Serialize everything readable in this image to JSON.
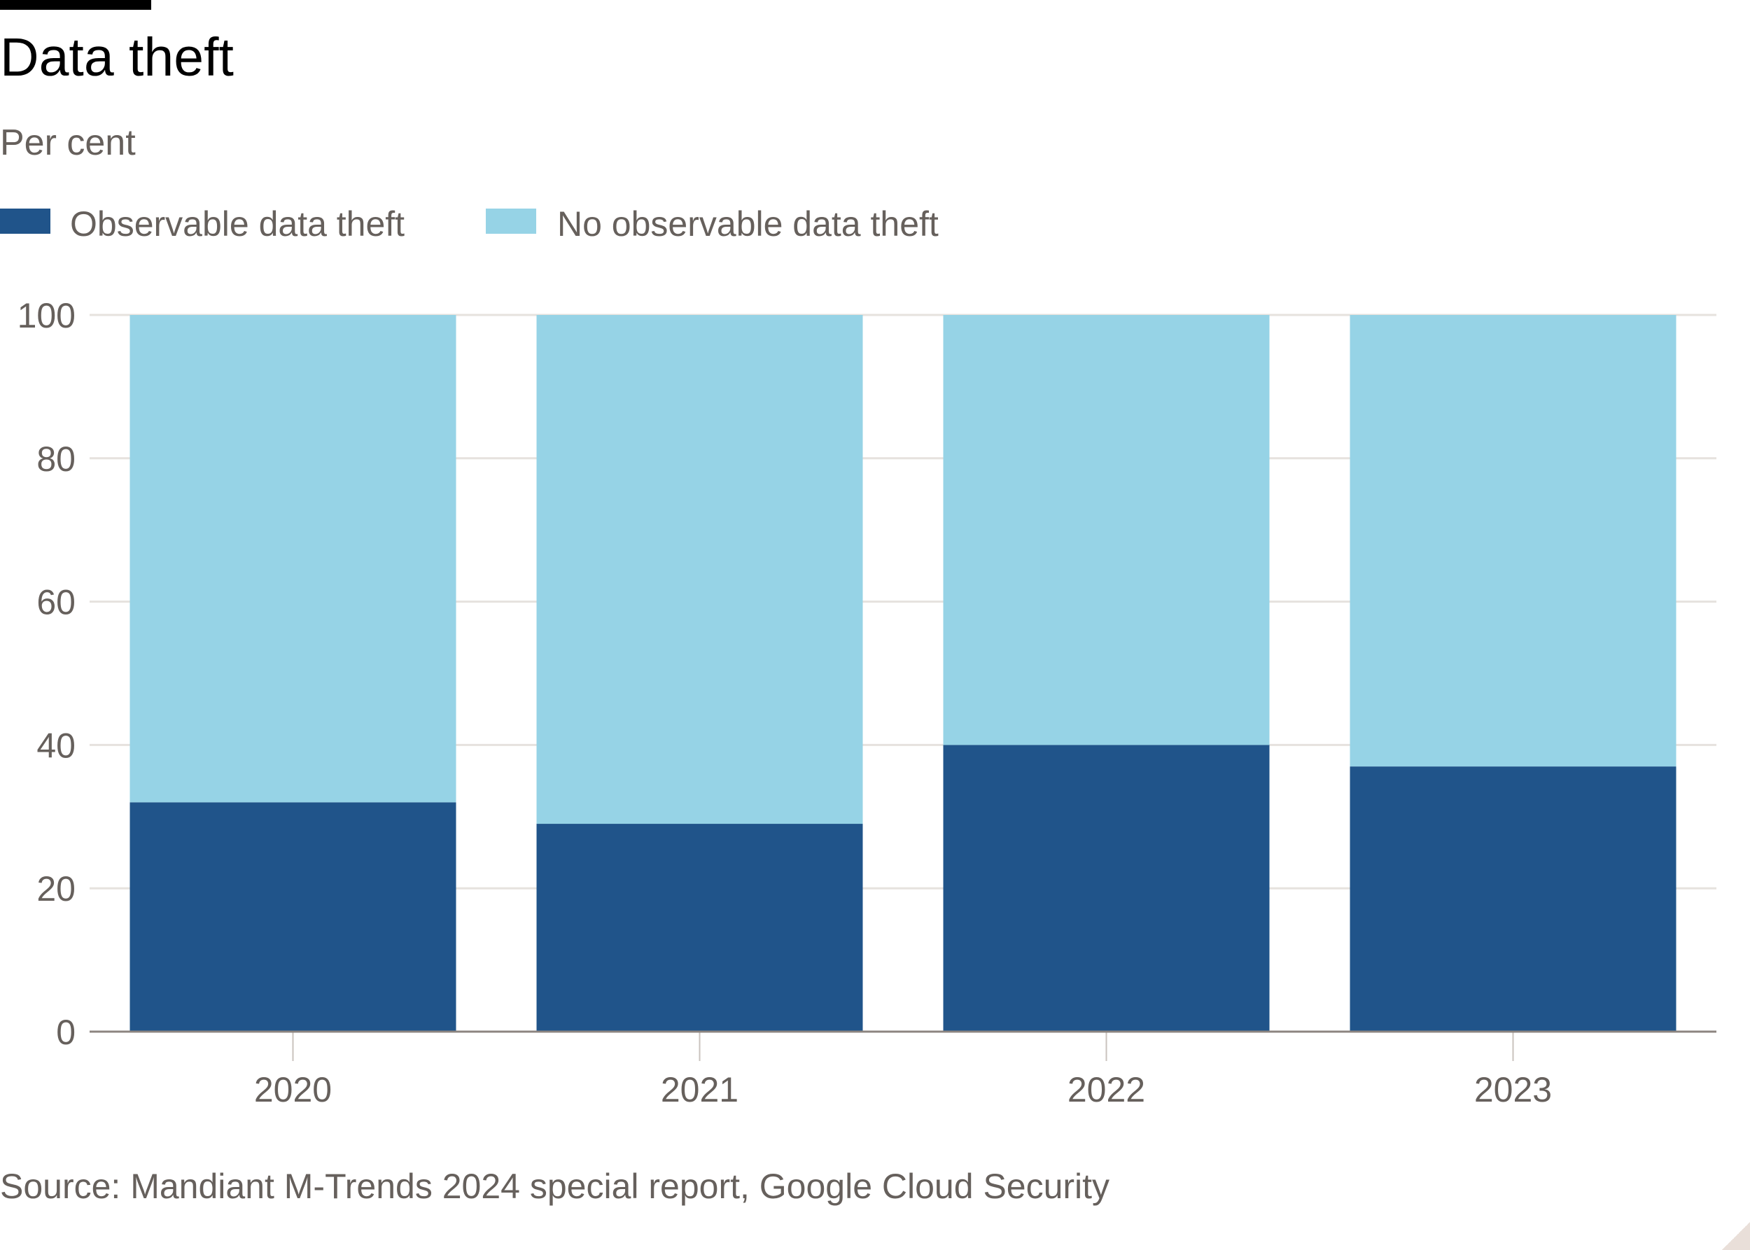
{
  "title": "Data theft",
  "subtitle": "Per cent",
  "source": "Source: Mandiant M-Trends 2024 special report, Google Cloud Security",
  "colors": {
    "observable": "#20548a",
    "no_observable": "#96d3e6",
    "grid": "#e6e2de",
    "axis_text": "#66605c"
  },
  "legend": [
    {
      "label": "Observable data theft",
      "color": "#20548a"
    },
    {
      "label": "No observable data theft",
      "color": "#96d3e6"
    }
  ],
  "chart_data": {
    "type": "bar",
    "stacked": true,
    "title": "Data theft",
    "ylabel": "Per cent",
    "xlabel": "",
    "categories": [
      "2020",
      "2021",
      "2022",
      "2023"
    ],
    "series": [
      {
        "name": "Observable data theft",
        "values": [
          32,
          29,
          40,
          37
        ]
      },
      {
        "name": "No observable data theft",
        "values": [
          68,
          71,
          60,
          63
        ]
      }
    ],
    "ylim": [
      0,
      100
    ],
    "yticks": [
      0,
      20,
      40,
      60,
      80,
      100
    ],
    "grid": true,
    "legend_position": "top-left"
  }
}
